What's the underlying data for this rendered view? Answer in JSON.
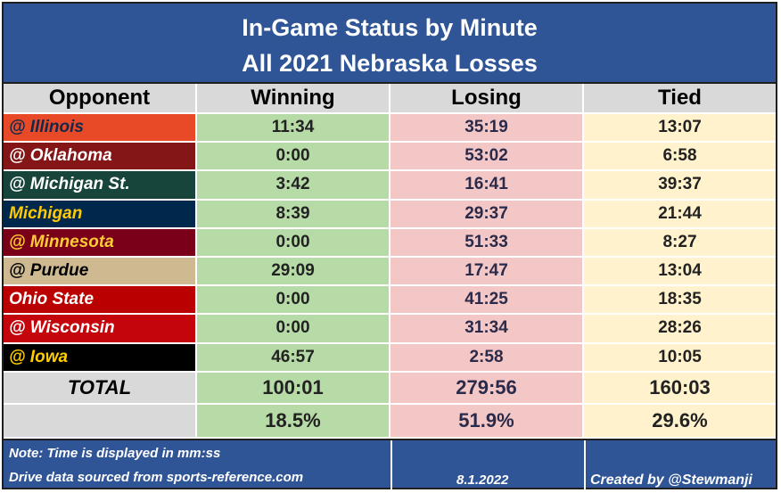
{
  "title": {
    "line1": "In-Game Status by Minute",
    "line2": "All 2021 Nebraska Losses"
  },
  "headers": [
    "Opponent",
    "Winning",
    "Losing",
    "Tied"
  ],
  "rows": [
    {
      "opponent": "@ Illinois",
      "winning": "11:34",
      "losing": "35:19",
      "tied": "13:07",
      "bg": "#e84a27",
      "fg": "#13294b"
    },
    {
      "opponent": "@ Oklahoma",
      "winning": "0:00",
      "losing": "53:02",
      "tied": "6:58",
      "bg": "#841617",
      "fg": "#ffffff"
    },
    {
      "opponent": "@ Michigan St.",
      "winning": "3:42",
      "losing": "16:41",
      "tied": "39:37",
      "bg": "#18453b",
      "fg": "#ffffff"
    },
    {
      "opponent": "Michigan",
      "winning": "8:39",
      "losing": "29:37",
      "tied": "21:44",
      "bg": "#00274c",
      "fg": "#ffcb05"
    },
    {
      "opponent": "@ Minnesota",
      "winning": "0:00",
      "losing": "51:33",
      "tied": "8:27",
      "bg": "#7a0019",
      "fg": "#ffcc33"
    },
    {
      "opponent": "@ Purdue",
      "winning": "29:09",
      "losing": "17:47",
      "tied": "13:04",
      "bg": "#cfb991",
      "fg": "#000000"
    },
    {
      "opponent": "Ohio State",
      "winning": "0:00",
      "losing": "41:25",
      "tied": "18:35",
      "bg": "#bb0000",
      "fg": "#ffffff"
    },
    {
      "opponent": "@ Wisconsin",
      "winning": "0:00",
      "losing": "31:34",
      "tied": "28:26",
      "bg": "#c5050c",
      "fg": "#ffffff"
    },
    {
      "opponent": "@ Iowa",
      "winning": "46:57",
      "losing": "2:58",
      "tied": "10:05",
      "bg": "#000000",
      "fg": "#ffcd00"
    }
  ],
  "total": {
    "label": "TOTAL",
    "winning": "100:01",
    "losing": "279:56",
    "tied": "160:03"
  },
  "percent": {
    "winning": "18.5%",
    "losing": "51.9%",
    "tied": "29.6%"
  },
  "footer": {
    "note": "Note: Time is displayed in mm:ss",
    "source": "Drive data sourced from sports-reference.com",
    "date": "8.1.2022",
    "credit": "Created by @Stewmanji"
  },
  "colors": {
    "banner": "#2f5597",
    "winning": "#b7dba6",
    "losing": "#f4c7c7",
    "tied": "#fff2cc",
    "header": "#d9d9d9"
  }
}
